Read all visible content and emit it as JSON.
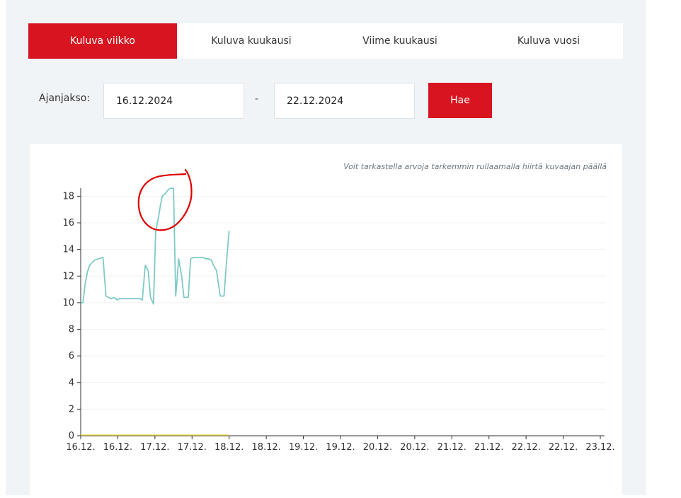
{
  "tabs": [
    {
      "label": "Kuluva viikko",
      "active": true
    },
    {
      "label": "Kuluva kuukausi",
      "active": false
    },
    {
      "label": "Viime kuukausi",
      "active": false
    },
    {
      "label": "Kuluva vuosi",
      "active": false
    }
  ],
  "period": {
    "label": "Ajanjakso:",
    "start": "16.12.2024",
    "separator": "-",
    "end": "22.12.2024",
    "button_label": "Hae"
  },
  "chart_hint": "Voit tarkastella arvoja tarkemmin rullaamalla hiirtä kuvaajan päällä",
  "colors": {
    "accent": "#d7141f",
    "line": "#7ecac5",
    "baseline": "#e8d84a",
    "annotation": "#e00000"
  },
  "chart_data": {
    "type": "line",
    "title": "",
    "xlabel": "",
    "ylabel": "",
    "ylim": [
      0,
      18.5
    ],
    "xlim": [
      0,
      14
    ],
    "yticks": [
      0,
      2,
      4,
      6,
      8,
      10,
      12,
      14,
      16,
      18
    ],
    "xticks": [
      "16.12.",
      "16.12.",
      "17.12.",
      "17.12.",
      "18.12.",
      "18.12.",
      "19.12.",
      "19.12.",
      "20.12.",
      "20.12.",
      "21.12.",
      "21.12.",
      "22.12.",
      "22.12.",
      "23.12."
    ],
    "grid": true,
    "x_unit": "half-day",
    "series": [
      {
        "x": [
          0,
          0.06,
          0.12,
          0.18,
          0.24,
          0.3,
          0.38,
          0.48,
          0.6,
          0.68,
          0.74,
          0.82,
          0.9,
          0.98,
          1.04,
          1.12,
          1.2,
          1.4,
          1.6,
          1.66,
          1.74,
          1.82,
          1.88,
          1.96,
          2.02,
          2.1,
          2.16,
          2.2,
          2.28,
          2.36,
          2.42,
          2.5,
          2.56,
          2.6,
          2.64,
          2.72,
          2.78,
          2.84,
          2.9,
          2.96,
          3.04,
          3.1,
          3.18,
          3.24,
          3.3,
          3.36,
          3.44,
          3.52,
          3.58,
          3.66,
          3.76,
          3.86,
          3.94,
          4.0
        ],
        "y": [
          10.0,
          10.0,
          11.4,
          12.3,
          12.8,
          13.0,
          13.2,
          13.3,
          13.4,
          10.5,
          10.4,
          10.3,
          10.4,
          10.2,
          10.3,
          10.3,
          10.3,
          10.3,
          10.3,
          10.2,
          12.8,
          12.4,
          10.4,
          9.9,
          15.3,
          16.5,
          17.5,
          18.0,
          18.2,
          18.5,
          18.6,
          18.6,
          10.5,
          11.8,
          13.3,
          12.0,
          10.4,
          10.4,
          10.4,
          13.3,
          13.4,
          13.4,
          13.4,
          13.4,
          13.4,
          13.3,
          13.3,
          13.2,
          12.8,
          12.4,
          10.5,
          10.5,
          13.5,
          15.4
        ]
      }
    ]
  }
}
